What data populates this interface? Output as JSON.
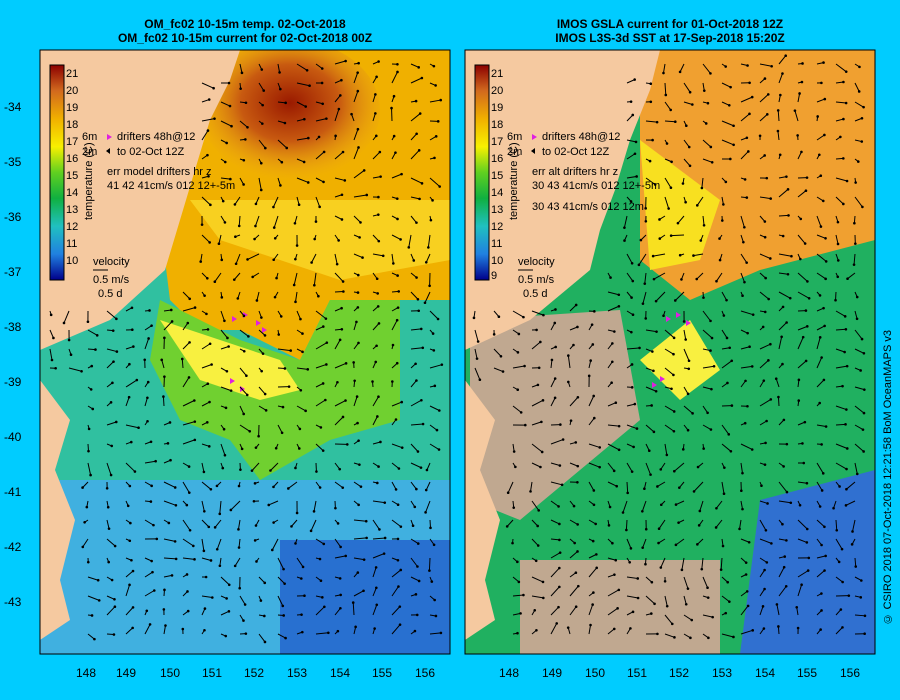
{
  "panels": [
    {
      "title_line1": "OM_fc02 10-15m temp. 02-Oct-2018",
      "title_line2": "OM_fc02 10-15m current for 02-Oct-2018 00Z",
      "drifter_label1": "drifters 48h@12",
      "drifter_label2": "to 02-Oct 12Z",
      "err_line1": "err model drifters hr z",
      "err_line2": "41 42 41cm/s 012 12+-5m",
      "err_line3": "",
      "colorbar_ticks": [
        "21",
        "20",
        "19",
        "18",
        "17",
        "16",
        "15",
        "14",
        "13",
        "12",
        "11",
        "10"
      ],
      "colorbar_label": "temperature (C)",
      "side_label": "6m",
      "side_label2": "2m"
    },
    {
      "title_line1": "IMOS GSLA current for 01-Oct-2018 12Z",
      "title_line2": "IMOS L3S-3d SST at 17-Sep-2018 15:20Z",
      "drifter_label1": "drifters 48h@12",
      "drifter_label2": "to 02-Oct 12Z",
      "err_line1": "err alt drifters hr z",
      "err_line2": "30 43 41cm/s 012 12+-5m",
      "err_line3": "30 43 41cm/s 012 12m",
      "colorbar_ticks": [
        "21",
        "20",
        "19",
        "18",
        "17",
        "16",
        "15",
        "14",
        "13",
        "12",
        "11",
        "10",
        "9"
      ],
      "colorbar_label": "temperature (C)",
      "side_label": "6m",
      "side_label2": "2m"
    }
  ],
  "velocity_legend": {
    "title": "velocity",
    "speed": "0.5 m/s",
    "time": "0.5 d"
  },
  "lat_ticks": [
    "-34",
    "-35",
    "-36",
    "-37",
    "-38",
    "-39",
    "-40",
    "-41",
    "-42",
    "-43"
  ],
  "lon_ticks": [
    "148",
    "149",
    "150",
    "151",
    "152",
    "153",
    "154",
    "155",
    "156"
  ],
  "credit": "© CSIRO 2018   07-Oct-2018 12:21:58 BoM OceanMAPS v3",
  "colors": {
    "background": "#00ccff",
    "land": "#f5c9a0",
    "drifter": "#e020e0"
  }
}
